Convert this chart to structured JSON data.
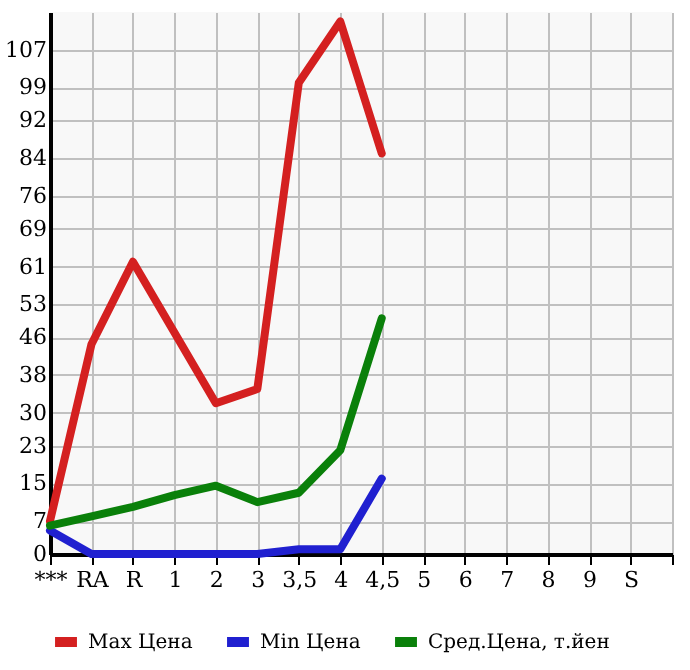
{
  "chart_data": {
    "type": "line",
    "categories": [
      "***",
      "RA",
      "R",
      "1",
      "2",
      "3",
      "3,5",
      "4",
      "4,5",
      "5",
      "6",
      "7",
      "8",
      "9",
      "S",
      null
    ],
    "series": [
      {
        "name": "Max Цена",
        "color": "#d42020",
        "values": [
          7,
          44.5,
          62,
          47,
          32,
          35,
          100,
          113,
          85,
          null,
          null,
          null,
          null,
          null,
          null,
          null
        ]
      },
      {
        "name": "Min Цена",
        "color": "#2020d0",
        "values": [
          5,
          0,
          0,
          0,
          0,
          0,
          1,
          1,
          16,
          null,
          null,
          null,
          null,
          null,
          null,
          null
        ]
      },
      {
        "name": "Сред.Цена, т.йен",
        "color": "#0a800a",
        "values": [
          6,
          8,
          10,
          12.5,
          14.5,
          11,
          13,
          22,
          50,
          null,
          null,
          null,
          null,
          null,
          null,
          null
        ]
      }
    ],
    "ylim": [
      0,
      115
    ],
    "yticks": [
      0,
      7,
      15,
      23,
      30,
      38,
      46,
      53,
      61,
      69,
      76,
      84,
      92,
      99,
      107
    ],
    "grid": true,
    "legend": "bottom",
    "marker": "none",
    "line_style": "solid"
  }
}
